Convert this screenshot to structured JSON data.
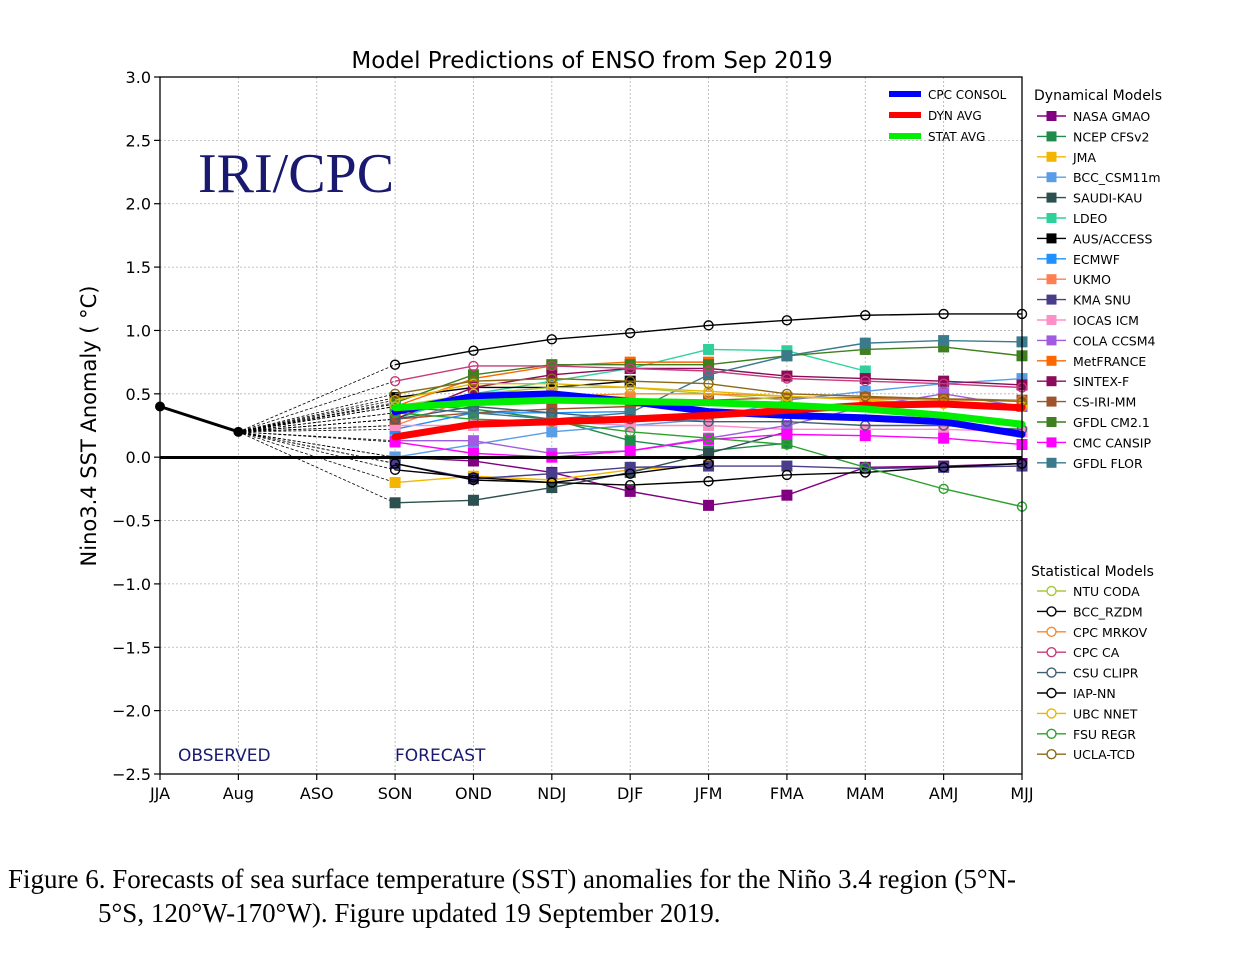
{
  "chart_data": {
    "type": "line",
    "title": "Model Predictions of ENSO from Sep 2019",
    "ylabel": "Nino3.4 SST Anomaly ( °C)",
    "xlabel": "",
    "categories": [
      "JJA",
      "Aug",
      "ASO",
      "SON",
      "OND",
      "NDJ",
      "DJF",
      "JFM",
      "FMA",
      "MAM",
      "AMJ",
      "MJJ"
    ],
    "ylim": [
      -2.5,
      3.0
    ],
    "yticks": [
      "3.0",
      "2.5",
      "2.0",
      "1.5",
      "1.0",
      "0.5",
      "0.0",
      "−0.5",
      "−1.0",
      "−1.5",
      "−2.0",
      "−2.5"
    ],
    "ytick_values": [
      3.0,
      2.5,
      2.0,
      1.5,
      1.0,
      0.5,
      0.0,
      -0.5,
      -1.0,
      -1.5,
      -2.0,
      -2.5
    ],
    "grid": true,
    "watermark": "IRI/CPC",
    "annotations": {
      "observed": "OBSERVED",
      "forecast": "FORECAST"
    },
    "observed": {
      "x": [
        "JJA",
        "Aug"
      ],
      "values": [
        0.4,
        0.2
      ]
    },
    "average_series": [
      {
        "name": "CPC CONSOL",
        "color": "#0000ff",
        "values": [
          0.36,
          0.48,
          0.5,
          0.44,
          0.36,
          0.33,
          0.31,
          0.28,
          0.18
        ]
      },
      {
        "name": "DYN AVG",
        "color": "#ff0000",
        "values": [
          0.16,
          0.26,
          0.28,
          0.3,
          0.33,
          0.37,
          0.41,
          0.42,
          0.39
        ]
      },
      {
        "name": "STAT AVG",
        "color": "#00ee00",
        "values": [
          0.39,
          0.43,
          0.45,
          0.44,
          0.43,
          0.41,
          0.38,
          0.33,
          0.26
        ]
      }
    ],
    "legend_dynamical_title": "Dynamical Models",
    "dynamical_models": [
      {
        "name": "NASA GMAO",
        "color": "#800080",
        "values": [
          0.0,
          -0.03,
          -0.12,
          -0.27,
          -0.38,
          -0.3,
          -0.08,
          -0.07,
          -0.05
        ]
      },
      {
        "name": "NCEP CFSv2",
        "color": "#1e8b4a",
        "values": [
          0.42,
          0.38,
          0.3,
          0.13,
          0.05,
          0.11,
          null,
          null,
          null
        ]
      },
      {
        "name": "JMA",
        "color": "#f2b600",
        "values": [
          -0.2,
          -0.15,
          -0.18,
          -0.1,
          -0.06,
          null,
          null,
          null,
          null
        ]
      },
      {
        "name": "BCC_CSM11m",
        "color": "#5a9de6",
        "values": [
          0.0,
          0.1,
          0.2,
          0.25,
          0.3,
          0.45,
          0.52,
          0.58,
          0.62
        ]
      },
      {
        "name": "SAUDI-KAU",
        "color": "#2c4f4f",
        "values": [
          -0.36,
          -0.34,
          -0.24,
          -0.12,
          0.03,
          0.2,
          null,
          null,
          null
        ]
      },
      {
        "name": "LDEO",
        "color": "#2ed19a",
        "values": [
          0.3,
          0.5,
          0.6,
          0.7,
          0.85,
          0.84,
          0.68,
          null,
          null
        ]
      },
      {
        "name": "AUS/ACCESS",
        "color": "#000000",
        "values": [
          0.47,
          0.55,
          0.55,
          0.6,
          null,
          null,
          null,
          null,
          null
        ]
      },
      {
        "name": "ECMWF",
        "color": "#1e90ff",
        "values": [
          0.22,
          0.35,
          0.35,
          0.36,
          null,
          null,
          null,
          null,
          null
        ]
      },
      {
        "name": "UKMO",
        "color": "#ff7f50",
        "values": [
          0.25,
          0.47,
          0.5,
          0.47,
          null,
          null,
          null,
          null,
          null
        ]
      },
      {
        "name": "KMA SNU",
        "color": "#483d8b",
        "values": [
          -0.05,
          -0.17,
          -0.13,
          -0.08,
          -0.07,
          -0.07,
          -0.09,
          -0.08,
          -0.07
        ]
      },
      {
        "name": "IOCAS ICM",
        "color": "#ff8fc8",
        "values": [
          0.25,
          0.25,
          0.28,
          0.25,
          0.25,
          0.22,
          0.22,
          0.22,
          0.2
        ]
      },
      {
        "name": "COLA CCSM4",
        "color": "#a15be0",
        "values": [
          0.13,
          0.13,
          0.03,
          0.05,
          0.15,
          0.25,
          0.4,
          0.5,
          0.4
        ]
      },
      {
        "name": "MetFRANCE",
        "color": "#ff6600",
        "values": [
          0.4,
          0.62,
          0.72,
          0.75,
          0.75,
          null,
          null,
          null,
          null
        ]
      },
      {
        "name": "SINTEX-F",
        "color": "#8b0a5a",
        "values": [
          0.3,
          0.55,
          0.65,
          0.7,
          0.7,
          0.64,
          0.62,
          0.6,
          0.57
        ]
      },
      {
        "name": "CS-IRI-MM",
        "color": "#a0522d",
        "values": [
          0.3,
          0.35,
          0.38,
          0.4,
          0.45,
          0.47,
          0.47,
          0.46,
          0.45
        ]
      },
      {
        "name": "GFDL CM2.1",
        "color": "#3f7f1f",
        "values": [
          0.43,
          0.65,
          0.73,
          0.73,
          0.73,
          0.8,
          0.85,
          0.87,
          0.8
        ]
      },
      {
        "name": "CMC CANSIP",
        "color": "#ff00ff",
        "values": [
          0.12,
          0.03,
          0.0,
          0.05,
          0.14,
          0.18,
          0.17,
          0.15,
          0.1
        ]
      },
      {
        "name": "GFDL FLOR",
        "color": "#3a7a8a",
        "values": [
          0.4,
          0.35,
          0.3,
          0.35,
          0.65,
          0.8,
          0.9,
          0.92,
          0.91
        ]
      }
    ],
    "legend_statistical_title": "Statistical Models",
    "statistical_models": [
      {
        "name": "NTU CODA",
        "color": "#a8c83a",
        "values": [
          0.4,
          0.5,
          0.55,
          0.55,
          0.5,
          0.45,
          null,
          null,
          null
        ]
      },
      {
        "name": "BCC_RZDM",
        "color": "#000000",
        "values": [
          -0.1,
          -0.16,
          -0.2,
          -0.22,
          -0.19,
          -0.14,
          -0.12,
          -0.08,
          -0.05
        ]
      },
      {
        "name": "CPC MRKOV",
        "color": "#f28a30",
        "values": [
          0.35,
          0.45,
          0.48,
          0.5,
          0.5,
          0.48,
          0.46,
          0.45,
          0.45
        ]
      },
      {
        "name": "CPC CA",
        "color": "#c83a7a",
        "values": [
          0.6,
          0.72,
          0.72,
          0.7,
          0.68,
          0.62,
          0.6,
          0.58,
          0.55
        ]
      },
      {
        "name": "CSU CLIPR",
        "color": "#3f5f6f",
        "values": [
          0.3,
          0.4,
          0.35,
          0.3,
          0.28,
          0.28,
          0.25,
          0.25,
          0.22
        ]
      },
      {
        "name": "IAP-NN",
        "color": "#000000",
        "values": [
          -0.05,
          -0.18,
          -0.2,
          -0.13,
          -0.05,
          null,
          null,
          null,
          null
        ]
      },
      {
        "name": "UBC NNET",
        "color": "#e6b800",
        "values": [
          0.45,
          0.58,
          0.58,
          0.55,
          0.52,
          0.48,
          0.45,
          0.42,
          0.4
        ]
      },
      {
        "name": "FSU REGR",
        "color": "#2ca02c",
        "values": [
          0.35,
          0.3,
          0.28,
          0.2,
          0.15,
          0.1,
          -0.08,
          -0.25,
          -0.39
        ]
      },
      {
        "name": "UCLA-TCD",
        "color": "#8b6914",
        "values": [
          0.5,
          0.6,
          0.62,
          0.6,
          0.58,
          0.5,
          0.48,
          0.46,
          0.44
        ]
      },
      {
        "name": "",
        "color": "#000000",
        "values": [
          0.73,
          0.84,
          0.93,
          0.98,
          1.04,
          1.08,
          1.12,
          1.13,
          1.13
        ]
      }
    ]
  },
  "caption": {
    "line1": "Figure 6. Forecasts of sea surface temperature (SST) anomalies for the Niño 3.4 region (5°N-",
    "line2": "5°S, 120°W-170°W). Figure updated 19 September 2019."
  }
}
